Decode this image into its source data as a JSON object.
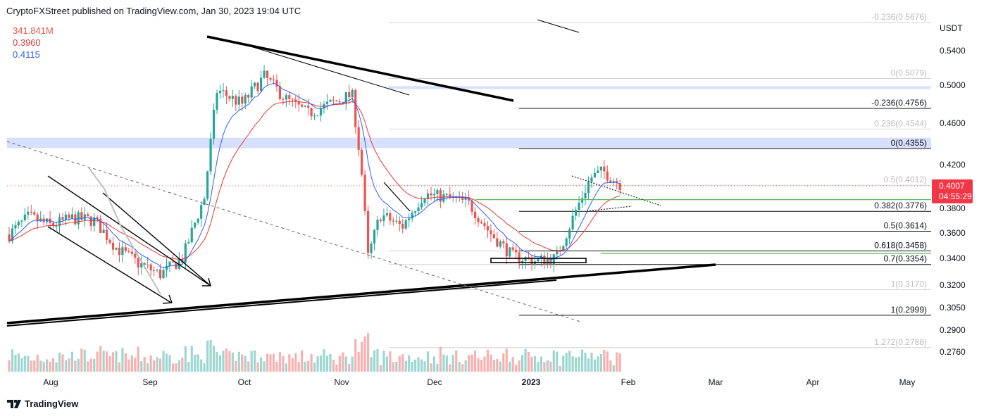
{
  "header": {
    "publisher_line": "CryptoFXStreet published on TradingView.com, Jan 30, 2023 19:04 UTC"
  },
  "legend": {
    "volume": "341.841M",
    "ema_red": "0.3960",
    "ema_blue": "0.4115"
  },
  "footer": {
    "brand": "TradingView"
  },
  "colors": {
    "up": "#26a69a",
    "down": "#ef5350",
    "ema_red": "#e53935",
    "ema_blue": "#2962ff",
    "zone": "#c9d5fb",
    "green_line": "#5cb85c",
    "price_label_bg": "#f23645"
  },
  "chart_data": {
    "type": "candlestick",
    "symbol_currency": "USDT",
    "last_price": "0.4007",
    "countdown": "04:55:29",
    "price_axis_ticks": [
      "0.5400",
      "0.5000",
      "0.4600",
      "0.4200",
      "0.3800",
      "0.3600",
      "0.3400",
      "0.3200",
      "0.3050",
      "0.2900",
      "0.2760"
    ],
    "time_axis_labels": [
      "Aug",
      "Sep",
      "Oct",
      "Nov",
      "Dec",
      "2023",
      "Feb",
      "Mar",
      "Apr",
      "May"
    ],
    "close_path": [
      [
        "2022-07-17",
        0.355
      ],
      [
        "2022-07-25",
        0.373
      ],
      [
        "2022-08-01",
        0.366
      ],
      [
        "2022-08-08",
        0.372
      ],
      [
        "2022-08-15",
        0.37
      ],
      [
        "2022-08-22",
        0.348
      ],
      [
        "2022-08-29",
        0.336
      ],
      [
        "2022-09-05",
        0.328
      ],
      [
        "2022-09-12",
        0.34
      ],
      [
        "2022-09-19",
        0.39
      ],
      [
        "2022-09-23",
        0.495
      ],
      [
        "2022-10-01",
        0.48
      ],
      [
        "2022-10-08",
        0.51
      ],
      [
        "2022-10-15",
        0.485
      ],
      [
        "2022-10-22",
        0.47
      ],
      [
        "2022-10-29",
        0.48
      ],
      [
        "2022-11-05",
        0.49
      ],
      [
        "2022-11-08",
        0.415
      ],
      [
        "2022-11-10",
        0.34
      ],
      [
        "2022-11-14",
        0.375
      ],
      [
        "2022-11-21",
        0.365
      ],
      [
        "2022-11-28",
        0.393
      ],
      [
        "2022-12-05",
        0.39
      ],
      [
        "2022-12-12",
        0.385
      ],
      [
        "2022-12-19",
        0.36
      ],
      [
        "2022-12-26",
        0.342
      ],
      [
        "2023-01-02",
        0.338
      ],
      [
        "2023-01-09",
        0.34
      ],
      [
        "2023-01-14",
        0.37
      ],
      [
        "2023-01-20",
        0.408
      ],
      [
        "2023-01-24",
        0.414
      ],
      [
        "2023-01-30",
        0.4007
      ]
    ],
    "fib_sets": [
      {
        "levels": [
          {
            "label": "-0.236(0.5676)",
            "value": 0.5676,
            "faded": true
          },
          {
            "label": "0(0.5079)",
            "value": 0.5079,
            "faded": true
          },
          {
            "label": "0.236(0.4544)",
            "value": 0.4544,
            "faded": true
          },
          {
            "label": "0.5(0.4012)",
            "value": 0.4012,
            "faded": true
          },
          {
            "label": "0.618(0.3458)",
            "value": 0.3458,
            "faded": true
          },
          {
            "label": "0.7(0.3354)",
            "value": 0.3354,
            "faded": true
          },
          {
            "label": "1(0.3170)",
            "value": 0.317,
            "faded": true
          },
          {
            "label": "1.272(0.2788)",
            "value": 0.2788,
            "faded": true
          }
        ]
      },
      {
        "levels": [
          {
            "label": "-0.236(0.4756)",
            "value": 0.4756,
            "faded": false
          },
          {
            "label": "0(0.4355)",
            "value": 0.4355,
            "faded": false
          },
          {
            "label": "0.382(0.3776)",
            "value": 0.3776,
            "faded": false
          },
          {
            "label": "0.5(0.3614)",
            "value": 0.3614,
            "faded": false
          },
          {
            "label": "0.618(0.3458)",
            "value": 0.3458,
            "faded": false
          },
          {
            "label": "0.7(0.3354)",
            "value": 0.3354,
            "faded": false
          },
          {
            "label": "1(0.2999)",
            "value": 0.2999,
            "faded": false
          }
        ]
      }
    ],
    "zones": [
      {
        "from": 0.499,
        "to": 0.496
      },
      {
        "from": 0.446,
        "to": 0.436
      }
    ],
    "green_level": 0.388
  }
}
